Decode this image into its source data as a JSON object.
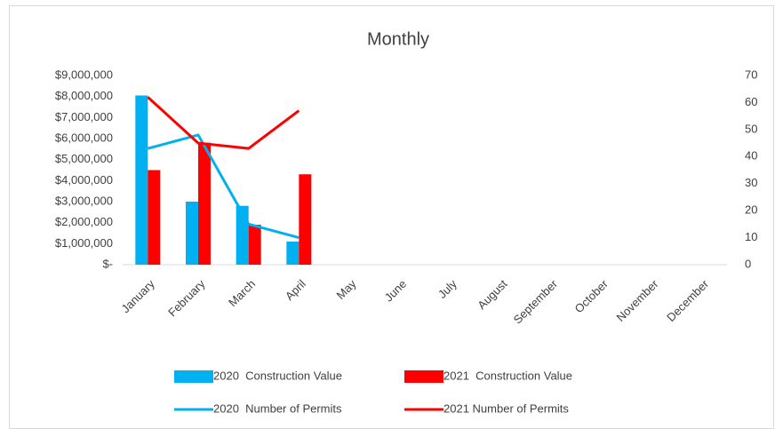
{
  "chart_data": {
    "type": "bar",
    "title": "Monthly",
    "categories": [
      "January",
      "February",
      "March",
      "April",
      "May",
      "June",
      "July",
      "August",
      "September",
      "October",
      "November",
      "December"
    ],
    "series": [
      {
        "name": "2020  Construction Value",
        "color": "#00b0f0",
        "type": "bar",
        "axis": "y",
        "values": [
          8050000,
          3000000,
          2800000,
          1100000,
          null,
          null,
          null,
          null,
          null,
          null,
          null,
          null
        ]
      },
      {
        "name": "2021  Construction Value",
        "color": "#ff0000",
        "type": "bar",
        "axis": "y",
        "values": [
          4500000,
          5800000,
          1900000,
          4300000,
          null,
          null,
          null,
          null,
          null,
          null,
          null,
          null
        ]
      },
      {
        "name": "2020  Number of Permits",
        "color": "#00b0f0",
        "type": "line",
        "axis": "y2",
        "values": [
          43,
          48,
          15,
          10,
          null,
          null,
          null,
          null,
          null,
          null,
          null,
          null
        ]
      },
      {
        "name": "2021 Number of Permits",
        "color": "#ff0000",
        "type": "line",
        "axis": "y2",
        "values": [
          62,
          45,
          43,
          57,
          null,
          null,
          null,
          null,
          null,
          null,
          null,
          null
        ]
      }
    ],
    "ylim": [
      0,
      9000000
    ],
    "yticks": [
      {
        "value": 0,
        "label": "$-"
      },
      {
        "value": 1000000,
        "label": "$1,000,000"
      },
      {
        "value": 2000000,
        "label": "$2,000,000"
      },
      {
        "value": 3000000,
        "label": "$3,000,000"
      },
      {
        "value": 4000000,
        "label": "$4,000,000"
      },
      {
        "value": 5000000,
        "label": "$5,000,000"
      },
      {
        "value": 6000000,
        "label": "$6,000,000"
      },
      {
        "value": 7000000,
        "label": "$7,000,000"
      },
      {
        "value": 8000000,
        "label": "$8,000,000"
      },
      {
        "value": 9000000,
        "label": "$9,000,000"
      }
    ],
    "y2lim": [
      0,
      70
    ],
    "y2ticks": [
      0,
      10,
      20,
      30,
      40,
      50,
      60,
      70
    ],
    "grid": false
  }
}
